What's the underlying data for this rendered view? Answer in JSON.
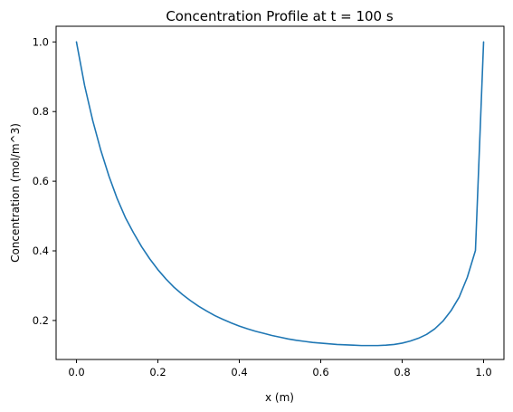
{
  "chart_data": {
    "type": "line",
    "title": "Concentration Profile at t = 100 s",
    "xlabel": "x (m)",
    "ylabel": "Concentration (mol/m^3)",
    "xlim": [
      -0.05,
      1.05
    ],
    "ylim": [
      0.088,
      1.045
    ],
    "xticks": [
      0.0,
      0.2,
      0.4,
      0.6,
      0.8,
      1.0
    ],
    "yticks": [
      0.2,
      0.4,
      0.6,
      0.8,
      1.0
    ],
    "xtick_labels": [
      "0.0",
      "0.2",
      "0.4",
      "0.6",
      "0.8",
      "1.0"
    ],
    "ytick_labels": [
      "0.2",
      "0.4",
      "0.6",
      "0.8",
      "1.0"
    ],
    "grid": false,
    "legend": "none",
    "series": [
      {
        "color": "#1f77b4",
        "x": [
          0.0,
          0.02,
          0.04,
          0.06,
          0.08,
          0.1,
          0.12,
          0.14,
          0.16,
          0.18,
          0.2,
          0.22,
          0.24,
          0.26,
          0.28,
          0.3,
          0.32,
          0.34,
          0.36,
          0.38,
          0.4,
          0.42,
          0.44,
          0.46,
          0.48,
          0.5,
          0.52,
          0.54,
          0.56,
          0.58,
          0.6,
          0.62,
          0.64,
          0.66,
          0.68,
          0.7,
          0.72,
          0.74,
          0.76,
          0.78,
          0.8,
          0.82,
          0.84,
          0.86,
          0.88,
          0.9,
          0.92,
          0.94,
          0.96,
          0.98,
          1.0
        ],
        "y": [
          1.0,
          0.875,
          0.774,
          0.688,
          0.614,
          0.55,
          0.496,
          0.452,
          0.412,
          0.377,
          0.346,
          0.319,
          0.295,
          0.275,
          0.257,
          0.241,
          0.227,
          0.214,
          0.203,
          0.193,
          0.184,
          0.176,
          0.169,
          0.163,
          0.157,
          0.152,
          0.147,
          0.143,
          0.14,
          0.137,
          0.135,
          0.133,
          0.131,
          0.13,
          0.129,
          0.128,
          0.128,
          0.128,
          0.129,
          0.131,
          0.135,
          0.141,
          0.149,
          0.16,
          0.176,
          0.198,
          0.228,
          0.267,
          0.324,
          0.401,
          1.0
        ]
      }
    ]
  }
}
